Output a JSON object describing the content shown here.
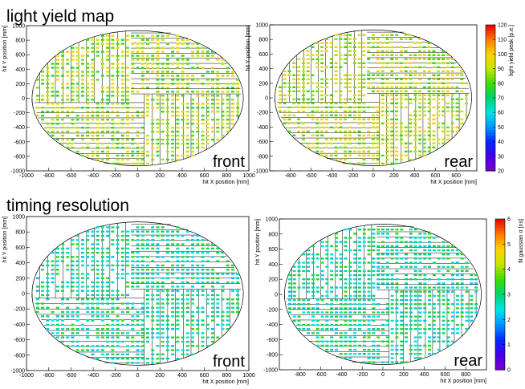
{
  "headings": {
    "light_yield": "light yield map",
    "timing": "timing resolution"
  },
  "chart_data": [
    {
      "id": "ly-front",
      "type": "heatmap",
      "title": "",
      "corner_label": "front",
      "xlabel": "hit X position [mm]",
      "ylabel": "hit Y position [mm]",
      "xlim": [
        -1000,
        1000
      ],
      "ylim": [
        -1000,
        1000
      ],
      "xticks": [
        -1000,
        -800,
        -600,
        -400,
        -200,
        0,
        200,
        400,
        600,
        800,
        1000
      ],
      "yticks": [
        -1000,
        -800,
        -600,
        -400,
        -200,
        0,
        200,
        400,
        600,
        800,
        1000
      ],
      "quantity": "light yield peak [p.e.]",
      "color_range": [
        20,
        120
      ],
      "typical_value": 88,
      "bar_orientation": "vertical bars upper-left, horizontal bars upper-right, horizontal bars lower-left, vertical bars lower-right"
    },
    {
      "id": "ly-rear",
      "type": "heatmap",
      "title": "",
      "corner_label": "rear",
      "xlabel": "hit X position [mm]",
      "ylabel": "hit Y position [mm]",
      "xlim": [
        -1000,
        1000
      ],
      "ylim": [
        -1000,
        1000
      ],
      "xticks": [
        -800,
        -600,
        -400,
        -200,
        0,
        200,
        400,
        600,
        800
      ],
      "yticks": [
        -1000,
        -800,
        -600,
        -400,
        -200,
        0,
        200,
        400,
        600,
        800,
        1000
      ],
      "quantity": "light yield peak [p.e.]",
      "color_range": [
        20,
        120
      ],
      "typical_value": 90,
      "colorbar": {
        "label": "light yield peak [p.e.]",
        "min": 20,
        "max": 120,
        "ticks": [
          20,
          30,
          40,
          50,
          60,
          70,
          80,
          90,
          100,
          110,
          120
        ]
      }
    },
    {
      "id": "tr-front",
      "type": "heatmap",
      "title": "",
      "corner_label": "front",
      "xlabel": "hit X position [mm]",
      "ylabel": "hit Y position [mm]",
      "xlim": [
        -1000,
        1000
      ],
      "ylim": [
        -1000,
        1000
      ],
      "xticks": [
        -1000,
        -800,
        -600,
        -400,
        -200,
        0,
        200,
        400,
        600,
        800,
        1000
      ],
      "yticks": [
        -1000,
        -800,
        -600,
        -400,
        -200,
        0,
        200,
        400,
        600,
        800,
        1000
      ],
      "quantity": "fit gaussian σ [ns]",
      "color_range": [
        0,
        6
      ],
      "typical_value": 2.8
    },
    {
      "id": "tr-rear",
      "type": "heatmap",
      "title": "",
      "corner_label": "rear",
      "xlabel": "hit X position [mm]",
      "ylabel": "hit Y position [mm]",
      "xlim": [
        -1000,
        1000
      ],
      "ylim": [
        -1000,
        1000
      ],
      "xticks": [
        -800,
        -600,
        -400,
        -200,
        0,
        200,
        400,
        600,
        800
      ],
      "yticks": [
        -1000,
        -800,
        -600,
        -400,
        -200,
        0,
        200,
        400,
        600,
        800,
        1000
      ],
      "quantity": "fit gaussian σ [ns]",
      "color_range": [
        0,
        6
      ],
      "typical_value": 2.8,
      "colorbar": {
        "label": "fit gaussian σ [ns]",
        "min": 0,
        "max": 6,
        "ticks": [
          0,
          1,
          2,
          3,
          4,
          5,
          6
        ]
      }
    }
  ]
}
